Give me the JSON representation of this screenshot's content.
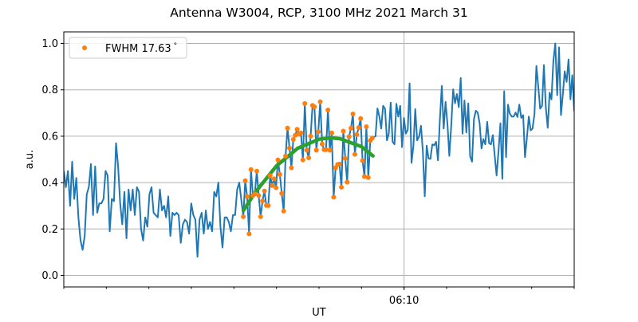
{
  "chart_data": {
    "type": "line",
    "title": "Antenna W3004, RCP, 3100 MHz 2021 March 31",
    "xlabel": "UT",
    "ylabel": "a.u.",
    "x_units": "minutes after 06:00 UT",
    "xlim": [
      2.0,
      14.0
    ],
    "ylim": [
      -0.05,
      1.05
    ],
    "xticks_major": [
      {
        "value": 10,
        "label": "06:10"
      }
    ],
    "xticks_minor": [
      2,
      3,
      4,
      5,
      6,
      7,
      8,
      9,
      10,
      11,
      12,
      13,
      14
    ],
    "yticks": [
      {
        "value": 0.0,
        "label": "0.0"
      },
      {
        "value": 0.2,
        "label": "0.2"
      },
      {
        "value": 0.4,
        "label": "0.4"
      },
      {
        "value": 0.6,
        "label": "0.6"
      },
      {
        "value": 0.8,
        "label": "0.8"
      },
      {
        "value": 1.0,
        "label": "1.0"
      }
    ],
    "grid": true,
    "legend": {
      "placement": "top-left",
      "entries": [
        {
          "label": "FWHM 17.63",
          "suffix": "°",
          "series": "fwhm"
        }
      ]
    },
    "colors": {
      "signal": "#1f77b4",
      "fwhm": "#ff7f0e",
      "fit": "#2ca02c",
      "grid": "#b0b0b0"
    },
    "signal": {
      "name": "signal",
      "segments": [
        {
          "x_start": 2.0,
          "x_end": 6.125,
          "values": [
            0.45,
            0.38,
            0.45,
            0.3,
            0.49,
            0.33,
            0.42,
            0.25,
            0.15,
            0.11,
            0.17,
            0.35,
            0.38,
            0.48,
            0.26,
            0.47,
            0.27,
            0.31,
            0.31,
            0.33,
            0.45,
            0.43,
            0.19,
            0.33,
            0.32,
            0.57,
            0.47,
            0.31,
            0.22,
            0.36,
            0.16,
            0.37,
            0.28,
            0.37,
            0.26,
            0.38,
            0.36,
            0.2,
            0.15,
            0.25,
            0.21,
            0.35,
            0.38,
            0.27,
            0.26,
            0.25,
            0.37,
            0.28,
            0.3,
            0.25,
            0.34,
            0.17,
            0.27,
            0.26,
            0.27,
            0.26,
            0.14,
            0.22,
            0.24,
            0.23,
            0.18,
            0.31,
            0.26,
            0.24,
            0.08,
            0.24,
            0.27,
            0.18,
            0.28,
            0.2,
            0.23,
            0.19,
            0.36,
            0.34,
            0.4,
            0.21,
            0.12,
            0.25,
            0.25,
            0.23,
            0.19,
            0.26,
            0.26,
            0.37,
            0.4
          ]
        },
        {
          "x_start": 6.22,
          "x_end": 9.25,
          "values": [
            0.253,
            0.408,
            0.339,
            0.179,
            0.456,
            0.344,
            0.351,
            0.449,
            0.344,
            0.253,
            0.321,
            0.364,
            0.301,
            0.301,
            0.43,
            0.387,
            0.416,
            0.378,
            0.498,
            0.435,
            0.353,
            0.277,
            0.514,
            0.635,
            0.549,
            0.464,
            0.586,
            0.604,
            0.63,
            0.61,
            0.614,
            0.498,
            0.741,
            0.54,
            0.507,
            0.6,
            0.733,
            0.727,
            0.54,
            0.619,
            0.749,
            0.566,
            0.542,
            0.542,
            0.713,
            0.54,
            0.614,
            0.337,
            0.464,
            0.478,
            0.48,
            0.38,
            0.622,
            0.504,
            0.402,
            0.598,
            0.635,
            0.696,
            0.522,
            0.607,
            0.637,
            0.676,
            0.495,
            0.426,
            0.641,
            0.422,
            0.581,
            0.592
          ]
        },
        {
          "x_start": 9.33,
          "x_end": 14.0,
          "values": [
            0.6,
            0.72,
            0.685,
            0.633,
            0.731,
            0.719,
            0.582,
            0.611,
            0.745,
            0.576,
            0.565,
            0.74,
            0.685,
            0.731,
            0.553,
            0.679,
            0.611,
            0.628,
            0.828,
            0.485,
            0.559,
            0.717,
            0.582,
            0.599,
            0.645,
            0.536,
            0.341,
            0.559,
            0.504,
            0.502,
            0.565,
            0.561,
            0.576,
            0.496,
            0.674,
            0.817,
            0.633,
            0.748,
            0.651,
            0.515,
            0.645,
            0.802,
            0.742,
            0.782,
            0.725,
            0.851,
            0.611,
            0.754,
            0.616,
            0.742,
            0.513,
            0.49,
            0.674,
            0.71,
            0.702,
            0.656,
            0.547,
            0.588,
            0.565,
            0.662,
            0.57,
            0.565,
            0.605,
            0.513,
            0.431,
            0.536,
            0.656,
            0.416,
            0.794,
            0.51,
            0.736,
            0.697,
            0.685,
            0.685,
            0.702,
            0.683,
            0.736,
            0.679,
            0.691,
            0.51,
            0.593,
            0.685,
            0.625,
            0.633,
            0.697,
            0.903,
            0.817,
            0.719,
            0.731,
            0.907,
            0.725,
            0.636,
            0.788,
            0.759,
            0.926,
            1.0,
            0.777,
            0.983,
            0.691,
            0.782,
            0.88,
            0.834,
            0.931,
            0.759,
            0.863,
            0.708
          ]
        }
      ]
    },
    "fwhm": {
      "name": "FWHM 17.63°",
      "x_start": 6.22,
      "x_end": 9.25,
      "values": [
        0.253,
        0.408,
        0.339,
        0.179,
        0.456,
        0.344,
        0.351,
        0.449,
        0.344,
        0.253,
        0.321,
        0.364,
        0.301,
        0.301,
        0.43,
        0.387,
        0.416,
        0.378,
        0.498,
        0.435,
        0.353,
        0.277,
        0.514,
        0.635,
        0.549,
        0.464,
        0.586,
        0.604,
        0.63,
        0.61,
        0.614,
        0.498,
        0.741,
        0.54,
        0.507,
        0.6,
        0.733,
        0.727,
        0.54,
        0.619,
        0.749,
        0.566,
        0.542,
        0.542,
        0.713,
        0.54,
        0.614,
        0.337,
        0.464,
        0.478,
        0.48,
        0.38,
        0.622,
        0.504,
        0.402,
        0.598,
        0.635,
        0.696,
        0.522,
        0.607,
        0.637,
        0.676,
        0.495,
        0.426,
        0.641,
        0.422,
        0.581,
        0.592
      ]
    },
    "fit": {
      "name": "fit",
      "x": [
        6.22,
        6.5,
        7.0,
        7.5,
        8.0,
        8.28,
        8.5,
        9.0,
        9.27
      ],
      "y": [
        0.279,
        0.358,
        0.472,
        0.548,
        0.587,
        0.593,
        0.589,
        0.555,
        0.515
      ]
    }
  }
}
